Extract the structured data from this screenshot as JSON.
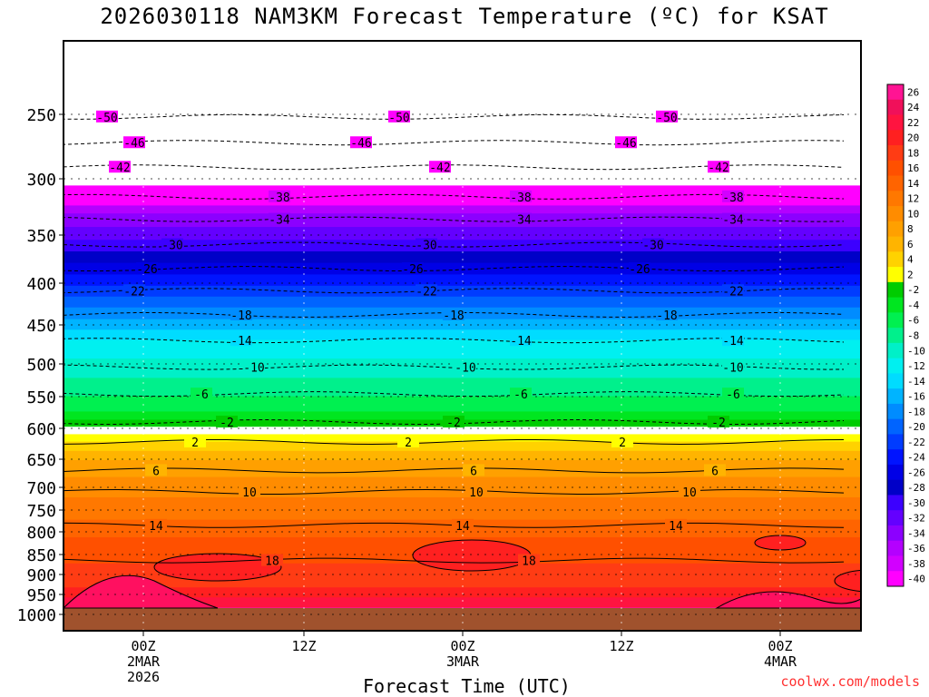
{
  "chart_data": {
    "type": "heatmap",
    "title": "2026030118 NAM3KM Forecast Temperature (ºC) for KSAT",
    "xlabel": "Forecast Time (UTC)",
    "credit": "coolwx.com/models",
    "y_ticks": [
      1000,
      950,
      900,
      850,
      800,
      750,
      700,
      650,
      600,
      550,
      500,
      450,
      400,
      350,
      300,
      250
    ],
    "x_ticks": [
      {
        "label": "00Z",
        "sub": "2MAR",
        "sub2": "2026"
      },
      {
        "label": "12Z",
        "sub": "",
        "sub2": ""
      },
      {
        "label": "00Z",
        "sub": "3MAR",
        "sub2": ""
      },
      {
        "label": "12Z",
        "sub": "",
        "sub2": ""
      },
      {
        "label": "00Z",
        "sub": "4MAR",
        "sub2": ""
      }
    ],
    "colorbar_labels": [
      "26",
      "24",
      "22",
      "20",
      "18",
      "16",
      "14",
      "12",
      "10",
      "8",
      "6",
      "4",
      "2",
      "-2",
      "-4",
      "-6",
      "-8",
      "-10",
      "-12",
      "-14",
      "-16",
      "-18",
      "-20",
      "-22",
      "-24",
      "-26",
      "-28",
      "-30",
      "-32",
      "-34",
      "-36",
      "-38",
      "-40"
    ],
    "contour_labels": [
      "-50",
      "-46",
      "-42",
      "-38",
      "-34",
      "-30",
      "-26",
      "-22",
      "-18",
      "-14",
      "-10",
      "-6",
      "-2",
      "2",
      "6",
      "10",
      "14",
      "18"
    ]
  }
}
